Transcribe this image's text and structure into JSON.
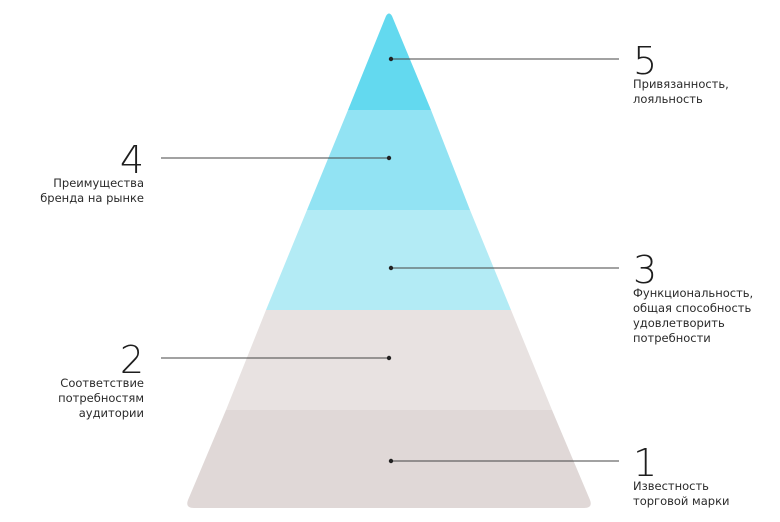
{
  "levels": [
    {
      "number": "1",
      "text": "Известность\nторговой марки",
      "color": "#e0d8d7"
    },
    {
      "number": "2",
      "text": "Соответствие\nпотребностям\nаудитории",
      "color": "#e8e2e1"
    },
    {
      "number": "3",
      "text": "Функциональность,\nобщая способность\nудовлетворить\nпотребности",
      "color": "#b3ebf5"
    },
    {
      "number": "4",
      "text": "Преимущества\nбренда на рынке",
      "color": "#92e3f3"
    },
    {
      "number": "5",
      "text": "Привязанность,\nлояльность",
      "color": "#63d9ef"
    }
  ],
  "colors": {
    "line": "#444444",
    "dot": "#222222"
  }
}
